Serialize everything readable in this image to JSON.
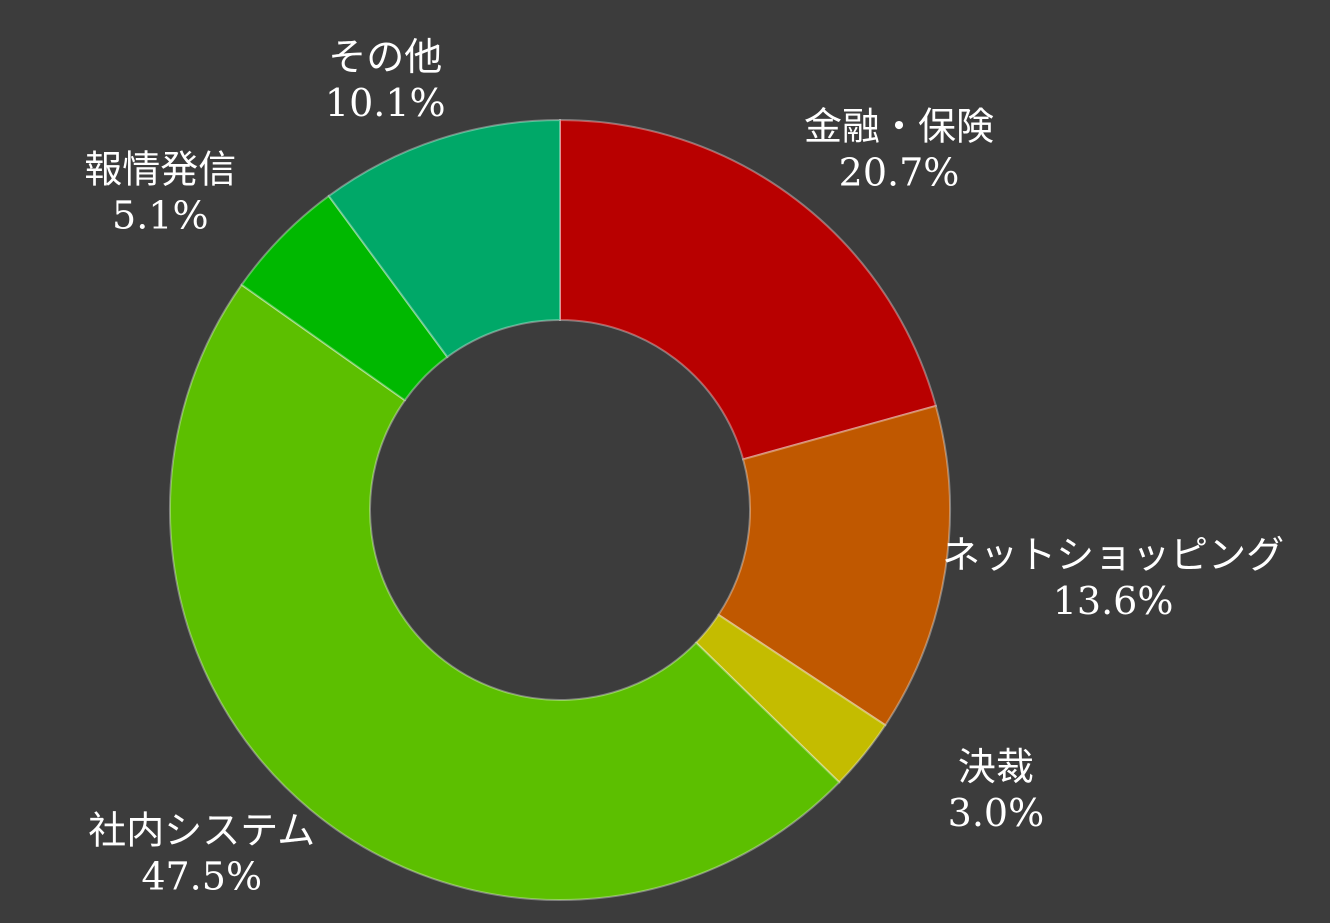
{
  "chart_data": {
    "type": "donut",
    "categories": [
      "金融・保険",
      "ネットショッピング",
      "決裁",
      "社内システム",
      "報情発信",
      "その他"
    ],
    "values": [
      20.7,
      13.6,
      3.0,
      47.5,
      5.1,
      10.1
    ],
    "value_labels": [
      "20.7%",
      "13.6%",
      "3.0%",
      "47.5%",
      "5.1%",
      "10.1%"
    ],
    "colors": [
      "#b80000",
      "#c05800",
      "#c4bc00",
      "#5cbf00",
      "#00b800",
      "#00a868"
    ]
  }
}
